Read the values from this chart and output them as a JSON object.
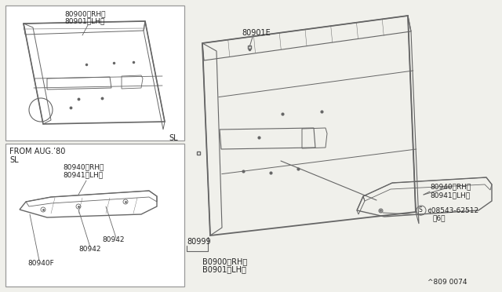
{
  "bg_color": "#f0f0eb",
  "line_color": "#666666",
  "text_color": "#222222",
  "diagram_ref": "^809  0074",
  "label_80900_rh": "80900〈RH〉",
  "label_80901_lh": "80901〈LH〉",
  "label_80901E": "80901E",
  "label_80940_rh": "80940〈RH〉",
  "label_80941_lh": "80941〈LH〉",
  "label_80942a": "80942",
  "label_80942b": "80942",
  "label_80940F": "80940F",
  "label_80999": "80999",
  "label_08543": "¢08543-62512",
  "label_06": "〈6〉",
  "label_B0900": "B0900〈RH〉",
  "label_B0901": "B0901〈LH〉",
  "label_SL": "SL",
  "label_from": "FROM AUG.’80",
  "label_SL2": "SL"
}
